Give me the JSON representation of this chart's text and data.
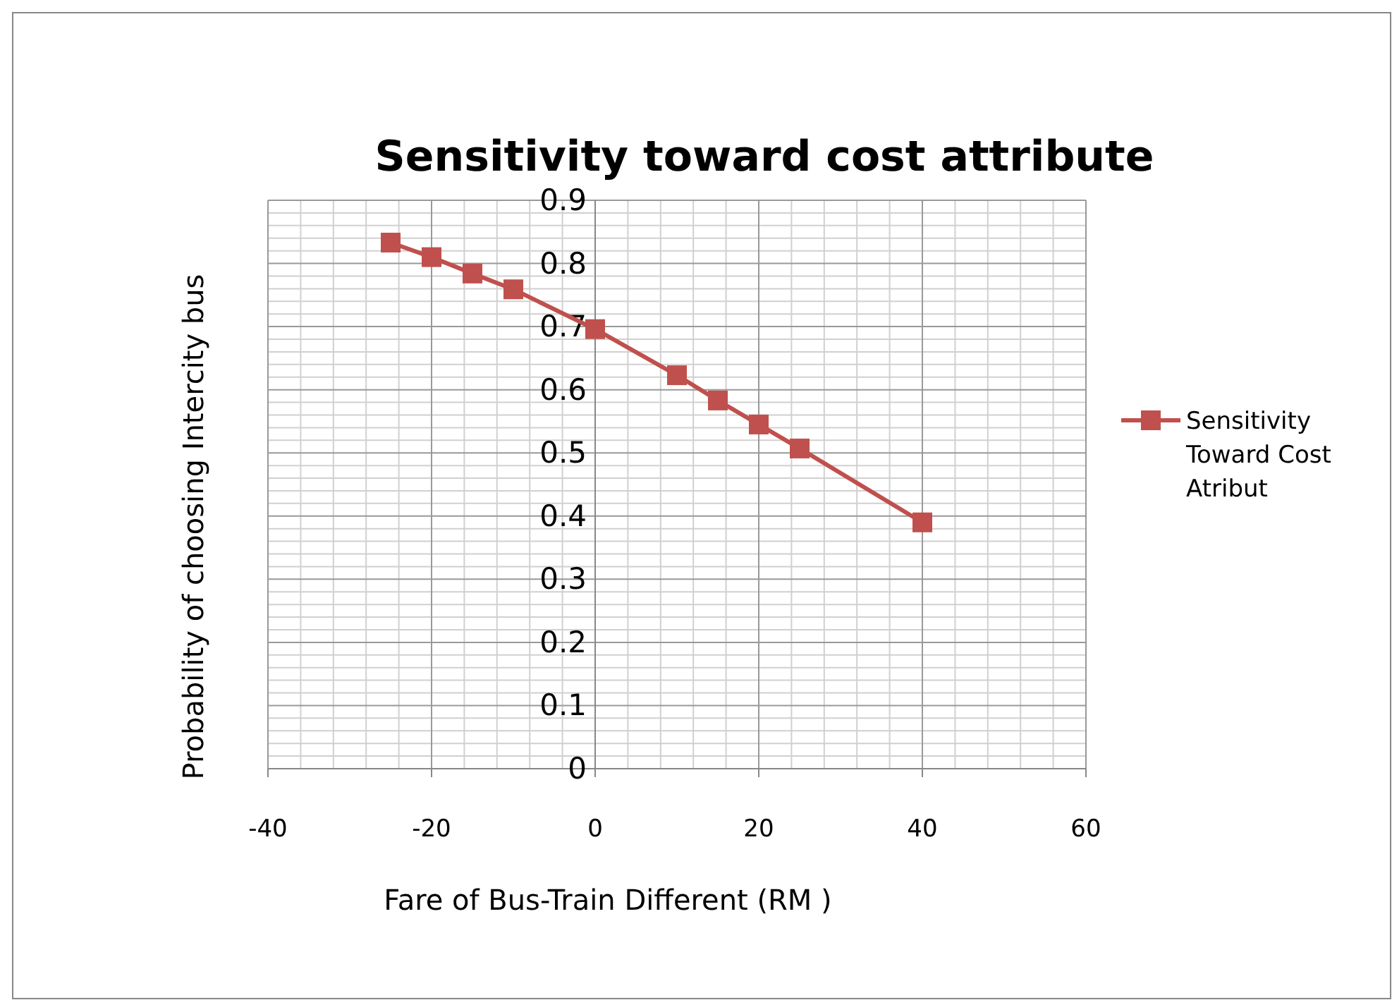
{
  "chart_data": {
    "type": "line",
    "title": "Sensitivity toward cost  attribute",
    "xlabel": "Fare of Bus-Train Different (RM )",
    "ylabel": "Probability of choosing  Intercity bus",
    "x": [
      -25,
      -20,
      -15,
      -10,
      0,
      10,
      15,
      20,
      25,
      40
    ],
    "series": [
      {
        "name": "Sensitivity Toward Cost Atribut",
        "color": "#c0504d",
        "values": [
          0.833,
          0.81,
          0.784,
          0.759,
          0.696,
          0.623,
          0.583,
          0.545,
          0.507,
          0.39
        ]
      }
    ],
    "xlim": [
      -40,
      60
    ],
    "xticks": [
      -40,
      -20,
      0,
      20,
      40,
      60
    ],
    "ylim": [
      0,
      0.9
    ],
    "yticks": [
      0,
      0.1,
      0.2,
      0.3,
      0.4,
      0.5,
      0.6,
      0.7,
      0.8,
      0.9
    ],
    "grid": true,
    "legend": "right",
    "marker": "square",
    "line_style": "solid"
  }
}
